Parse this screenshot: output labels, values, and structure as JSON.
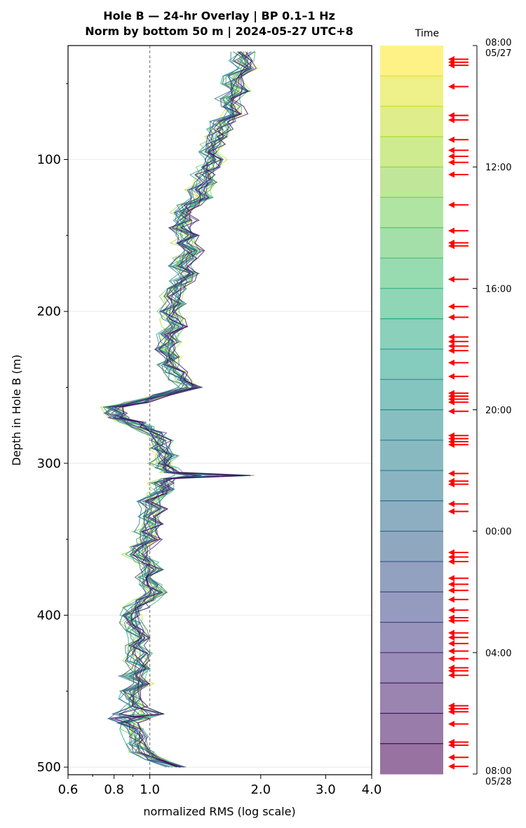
{
  "figure": {
    "title_line1": "Hole B — 24-hr Overlay  |  BP 0.1–1 Hz",
    "title_line2": "Norm by bottom 50 m  |  2024-05-27 UTC+8"
  },
  "chart_data": {
    "type": "line",
    "xlabel": "normalized RMS  (log scale)",
    "ylabel": "Depth in Hole B (m)",
    "xscale": "log",
    "xlim": [
      0.6,
      4.0
    ],
    "ylim": [
      505,
      25
    ],
    "y_inverted": true,
    "x_ticks": [
      "0.6",
      "0.8",
      "1.0",
      "2.0",
      "3.0",
      "4.0"
    ],
    "y_ticks": [
      "100",
      "200",
      "300",
      "400",
      "500"
    ],
    "grid": "horizontal",
    "reference_line": {
      "x": 1.0,
      "style": "dashed",
      "color": "#808080"
    },
    "n_series": 24,
    "series_start_hour": 8,
    "depths": [
      29,
      35,
      40,
      45,
      50,
      55,
      60,
      65,
      70,
      75,
      80,
      85,
      90,
      95,
      100,
      105,
      110,
      115,
      120,
      125,
      130,
      135,
      140,
      145,
      150,
      155,
      160,
      165,
      170,
      175,
      180,
      185,
      190,
      195,
      200,
      205,
      210,
      215,
      220,
      225,
      230,
      235,
      240,
      245,
      250,
      255,
      260,
      263,
      267,
      270,
      273,
      276,
      280,
      285,
      290,
      295,
      300,
      303,
      306,
      308,
      310,
      313,
      317,
      320,
      325,
      330,
      335,
      340,
      345,
      350,
      355,
      360,
      365,
      370,
      375,
      380,
      385,
      390,
      395,
      400,
      405,
      410,
      415,
      420,
      425,
      430,
      435,
      440,
      445,
      450,
      455,
      460,
      465,
      468,
      471,
      475,
      480,
      485,
      490,
      495,
      500
    ],
    "median_rms": [
      1.82,
      1.78,
      1.84,
      1.72,
      1.68,
      1.74,
      1.62,
      1.66,
      1.7,
      1.58,
      1.55,
      1.52,
      1.48,
      1.45,
      1.5,
      1.44,
      1.4,
      1.42,
      1.36,
      1.38,
      1.3,
      1.22,
      1.25,
      1.2,
      1.28,
      1.24,
      1.3,
      1.26,
      1.2,
      1.28,
      1.22,
      1.18,
      1.14,
      1.18,
      1.12,
      1.16,
      1.18,
      1.12,
      1.14,
      1.1,
      1.16,
      1.12,
      1.18,
      1.22,
      1.3,
      1.08,
      0.92,
      0.8,
      0.8,
      0.82,
      0.9,
      0.96,
      1.05,
      1.08,
      1.06,
      1.12,
      1.08,
      1.1,
      1.16,
      1.6,
      1.12,
      1.08,
      1.1,
      1.05,
      1.0,
      1.03,
      1.0,
      1.02,
      0.98,
      1.0,
      0.95,
      0.92,
      0.98,
      1.02,
      0.97,
      1.0,
      1.05,
      0.98,
      0.92,
      0.88,
      0.9,
      0.92,
      0.95,
      0.9,
      0.94,
      0.92,
      0.96,
      0.9,
      0.95,
      0.88,
      0.9,
      0.92,
      0.88,
      0.85,
      0.86,
      0.9,
      0.92,
      0.94,
      0.96,
      1.05,
      1.2
    ],
    "colorbar": {
      "label": "Time",
      "ticks": [
        "08:00\n05/27",
        "12:00",
        "16:00",
        "20:00",
        "00:00",
        "04:00",
        "08:00\n05/28"
      ],
      "colormap": "viridis (reversed, faded)",
      "n_bins": 24
    },
    "event_marker": {
      "shape": "left-arrow",
      "color": "#ff0000"
    },
    "event_hours": [
      0.45,
      0.55,
      0.65,
      1.35,
      2.3,
      2.45,
      3.1,
      3.45,
      3.65,
      3.85,
      4.25,
      5.25,
      6.1,
      6.5,
      6.6,
      7.7,
      8.6,
      8.95,
      9.6,
      9.75,
      9.9,
      10.05,
      10.45,
      10.9,
      11.45,
      11.55,
      11.65,
      11.75,
      12.05,
      12.85,
      12.95,
      13.05,
      13.15,
      14.1,
      14.35,
      14.45,
      15.1,
      15.35,
      16.7,
      16.85,
      17.0,
      17.55,
      17.75,
      17.95,
      18.25,
      18.6,
      18.85,
      18.95,
      19.35,
      19.5,
      19.7,
      19.95,
      20.2,
      20.5,
      20.6,
      20.75,
      21.75,
      21.85,
      21.95,
      22.35,
      22.95,
      23.05,
      23.45,
      23.75
    ]
  }
}
